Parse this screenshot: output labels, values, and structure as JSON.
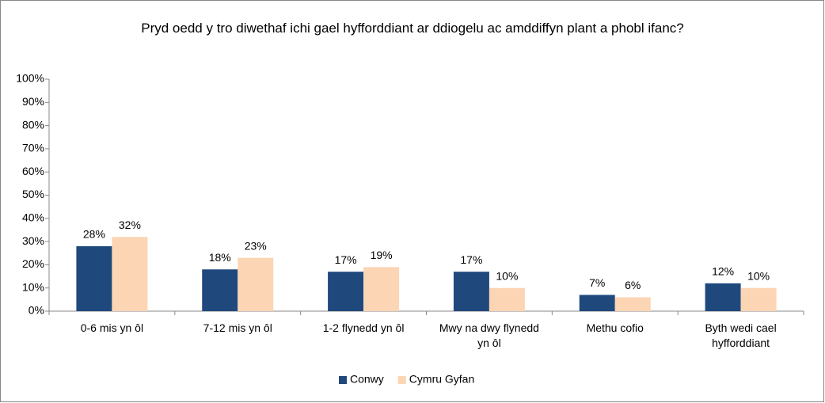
{
  "chart_data": {
    "type": "bar",
    "title": "Pryd oedd y tro diwethaf ichi gael hyfforddiant ar ddiogelu ac amddiffyn plant a phobl ifanc?",
    "categories": [
      "0-6 mis yn ôl",
      "7-12 mis yn ôl",
      "1-2 flynedd yn ôl",
      "Mwy na dwy flynedd yn ôl",
      "Methu cofio",
      "Byth wedi cael hyfforddiant"
    ],
    "series": [
      {
        "name": "Conwy",
        "color": "#1f497d",
        "values": [
          28,
          18,
          17,
          17,
          7,
          12
        ],
        "value_labels": [
          "28%",
          "18%",
          "17%",
          "17%",
          "7%",
          "12%"
        ]
      },
      {
        "name": "Cymru Gyfan",
        "color": "#fcd5b5",
        "values": [
          32,
          23,
          19,
          10,
          6,
          10
        ],
        "value_labels": [
          "32%",
          "23%",
          "19%",
          "10%",
          "6%",
          "10%"
        ]
      }
    ],
    "ylim": [
      0,
      100
    ],
    "yticks": [
      {
        "value": 0,
        "label": "0%"
      },
      {
        "value": 10,
        "label": "10%"
      },
      {
        "value": 20,
        "label": "20%"
      },
      {
        "value": 30,
        "label": "30%"
      },
      {
        "value": 40,
        "label": "40%"
      },
      {
        "value": 50,
        "label": "50%"
      },
      {
        "value": 60,
        "label": "60%"
      },
      {
        "value": 70,
        "label": "70%"
      },
      {
        "value": 80,
        "label": "80%"
      },
      {
        "value": 90,
        "label": "90%"
      },
      {
        "value": 100,
        "label": "100%"
      }
    ],
    "grid": false,
    "legend": "bottom"
  }
}
